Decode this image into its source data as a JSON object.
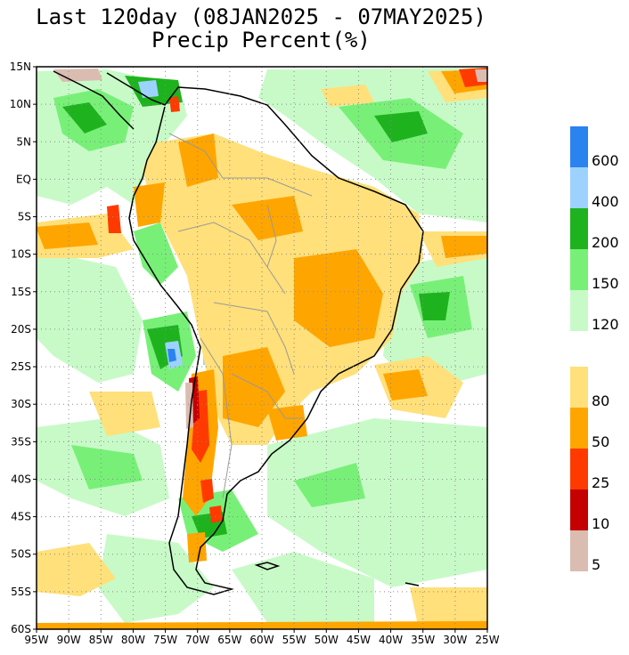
{
  "title": {
    "line1": "Last 120day (08JAN2025 - 07MAY2025)",
    "line2": "Precip Percent(%)"
  },
  "axes": {
    "lat_labels": [
      "15N",
      "10N",
      "5N",
      "EQ",
      "5S",
      "10S",
      "15S",
      "20S",
      "25S",
      "30S",
      "35S",
      "40S",
      "45S",
      "50S",
      "55S",
      "60S"
    ],
    "lat_values": [
      15,
      10,
      5,
      0,
      -5,
      -10,
      -15,
      -20,
      -25,
      -30,
      -35,
      -40,
      -45,
      -50,
      -55,
      -60
    ],
    "lon_labels": [
      "95W",
      "90W",
      "85W",
      "80W",
      "75W",
      "70W",
      "65W",
      "60W",
      "55W",
      "50W",
      "45W",
      "40W",
      "35W",
      "30W",
      "25W"
    ],
    "lon_values": [
      -95,
      -90,
      -85,
      -80,
      -75,
      -70,
      -65,
      -60,
      -55,
      -50,
      -45,
      -40,
      -35,
      -30,
      -25
    ]
  },
  "legend": {
    "wet": [
      {
        "label": "600",
        "color": "#2b83f0"
      },
      {
        "label": "400",
        "color": "#9dd2ff"
      },
      {
        "label": "200",
        "color": "#1eb31e"
      },
      {
        "label": "150",
        "color": "#78f078"
      },
      {
        "label": "120",
        "color": "#c8fac8"
      }
    ],
    "dry": [
      {
        "label": "80",
        "color": "#ffe07a"
      },
      {
        "label": "50",
        "color": "#ffa500"
      },
      {
        "label": "25",
        "color": "#ff3a00"
      },
      {
        "label": "10",
        "color": "#c40000"
      },
      {
        "label": "5",
        "color": "#dbbcb0"
      }
    ]
  },
  "colors": {
    "frame": "#000000",
    "coast": "#000000",
    "borders": "#999999",
    "grid": "#8a8a8a"
  }
}
